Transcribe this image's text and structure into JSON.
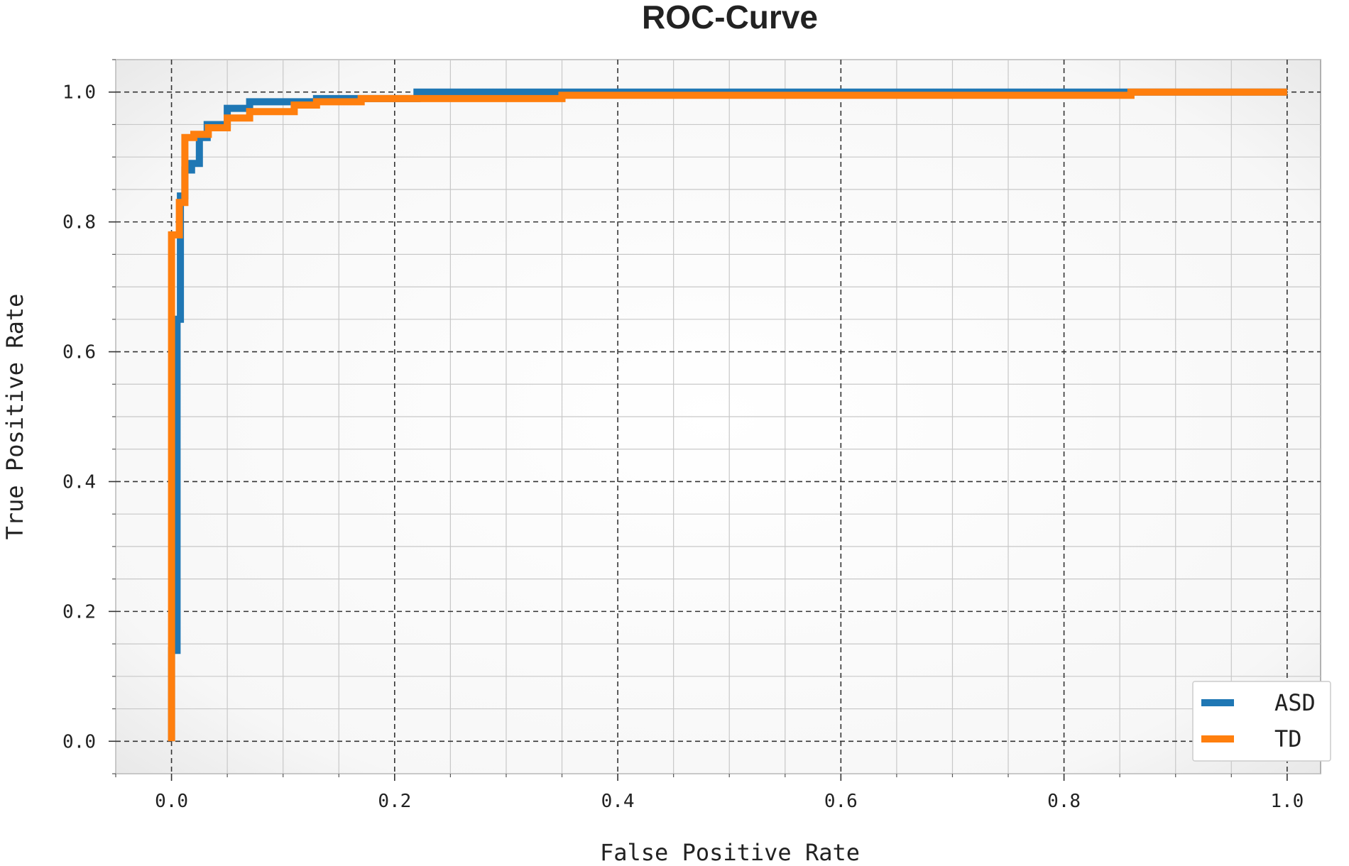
{
  "chart_data": {
    "type": "line",
    "title": "ROC-Curve",
    "xlabel": "False Positive Rate",
    "ylabel": "True Positive Rate",
    "xlim": [
      -0.05,
      1.03
    ],
    "ylim": [
      -0.05,
      1.05
    ],
    "x_ticks": [
      "0.0",
      "0.2",
      "0.4",
      "0.6",
      "0.8",
      "1.0"
    ],
    "y_ticks": [
      "0.0",
      "0.2",
      "0.4",
      "0.6",
      "0.8",
      "1.0"
    ],
    "grid": true,
    "legend_position": "bottom-right",
    "series": [
      {
        "name": "ASD",
        "color": "#1f77b4",
        "x": [
          0.0,
          0.0,
          0.005,
          0.005,
          0.008,
          0.008,
          0.012,
          0.012,
          0.018,
          0.018,
          0.025,
          0.025,
          0.032,
          0.032,
          0.05,
          0.05,
          0.07,
          0.07,
          0.13,
          0.13,
          0.22,
          0.22,
          0.86,
          0.86,
          1.0
        ],
        "y": [
          0.0,
          0.14,
          0.14,
          0.65,
          0.65,
          0.84,
          0.84,
          0.88,
          0.88,
          0.89,
          0.89,
          0.93,
          0.93,
          0.95,
          0.95,
          0.975,
          0.975,
          0.985,
          0.985,
          0.99,
          0.99,
          1.0,
          1.0,
          1.0,
          1.0
        ]
      },
      {
        "name": "TD",
        "color": "#ff7f0e",
        "x": [
          0.0,
          0.0,
          0.007,
          0.007,
          0.012,
          0.012,
          0.02,
          0.02,
          0.033,
          0.033,
          0.05,
          0.05,
          0.07,
          0.07,
          0.11,
          0.11,
          0.13,
          0.13,
          0.17,
          0.17,
          0.35,
          0.35,
          0.86,
          0.86,
          1.0
        ],
        "y": [
          0.0,
          0.78,
          0.78,
          0.83,
          0.83,
          0.93,
          0.93,
          0.935,
          0.935,
          0.945,
          0.945,
          0.96,
          0.96,
          0.97,
          0.97,
          0.98,
          0.98,
          0.985,
          0.985,
          0.99,
          0.99,
          0.995,
          0.995,
          1.0,
          1.0
        ]
      }
    ]
  }
}
